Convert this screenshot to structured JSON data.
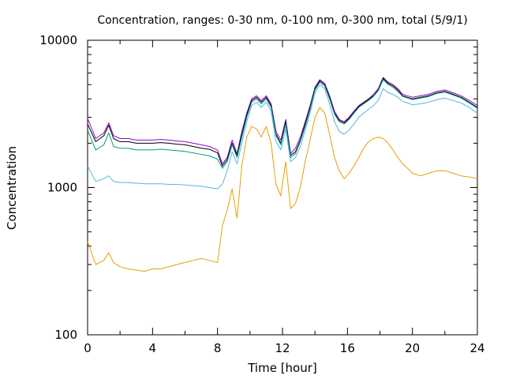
{
  "chart_data": {
    "type": "line",
    "title": "Concentration, ranges: 0-30 nm, 0-100 nm, 0-300 nm, total (5/9/1)",
    "xlabel": "Time [hour]",
    "ylabel": "Concentration",
    "xlim": [
      0,
      24
    ],
    "ylim": [
      100,
      10000
    ],
    "yscale": "log",
    "grid": false,
    "legend": "none",
    "xticks": [
      "0",
      "4",
      "8",
      "12",
      "16",
      "20",
      "24"
    ],
    "yticks": [
      "100",
      "1000",
      "10000"
    ],
    "x": [
      0,
      0.5,
      1,
      1.3,
      1.6,
      2,
      2.5,
      3,
      3.5,
      4,
      4.5,
      5,
      5.5,
      6,
      6.5,
      7,
      7.5,
      8,
      8.3,
      8.6,
      8.9,
      9.2,
      9.5,
      9.8,
      10.1,
      10.4,
      10.7,
      11,
      11.3,
      11.6,
      11.9,
      12.2,
      12.5,
      12.8,
      13.1,
      13.4,
      13.7,
      14,
      14.3,
      14.6,
      14.9,
      15.2,
      15.5,
      15.8,
      16.1,
      16.4,
      16.7,
      17,
      17.3,
      17.6,
      17.9,
      18.2,
      18.5,
      18.8,
      19.1,
      19.4,
      19.7,
      20,
      20.5,
      21,
      21.5,
      22,
      22.5,
      23,
      23.5,
      24
    ],
    "series": [
      {
        "color": "#9400d3",
        "values": [
          2950,
          2150,
          2350,
          2750,
          2250,
          2150,
          2150,
          2100,
          2100,
          2100,
          2120,
          2100,
          2070,
          2050,
          2000,
          1950,
          1900,
          1800,
          1450,
          1600,
          2100,
          1700,
          2400,
          3200,
          4000,
          4200,
          3900,
          4200,
          3700,
          2400,
          2100,
          2900,
          1700,
          1850,
          2200,
          2800,
          3600,
          4800,
          5400,
          5100,
          4200,
          3300,
          2900,
          2800,
          3000,
          3300,
          3600,
          3800,
          4000,
          4300,
          4700,
          5600,
          5200,
          5000,
          4700,
          4300,
          4200,
          4100,
          4200,
          4300,
          4500,
          4600,
          4400,
          4200,
          3900,
          3600
        ]
      },
      {
        "color": "#000000",
        "values": [
          2700,
          2050,
          2250,
          2650,
          2150,
          2050,
          2050,
          2000,
          2000,
          2000,
          2020,
          2000,
          1970,
          1950,
          1900,
          1850,
          1820,
          1720,
          1400,
          1550,
          2000,
          1650,
          2300,
          3100,
          3900,
          4100,
          3800,
          4100,
          3600,
          2300,
          2000,
          2800,
          1650,
          1750,
          2100,
          2700,
          3500,
          4700,
          5300,
          5000,
          4100,
          3200,
          2850,
          2750,
          2950,
          3250,
          3550,
          3750,
          3950,
          4200,
          4600,
          5500,
          5100,
          4900,
          4600,
          4200,
          4100,
          4000,
          4100,
          4200,
          4400,
          4500,
          4300,
          4100,
          3800,
          3500
        ]
      },
      {
        "color": "#009e73",
        "values": [
          2450,
          1800,
          1950,
          2350,
          1900,
          1850,
          1850,
          1800,
          1800,
          1800,
          1820,
          1800,
          1780,
          1760,
          1720,
          1680,
          1640,
          1560,
          1350,
          1500,
          1950,
          1600,
          2200,
          3000,
          3800,
          4000,
          3700,
          4000,
          3500,
          2250,
          1950,
          2700,
          1600,
          1700,
          2050,
          2600,
          3400,
          4600,
          5200,
          4900,
          4000,
          3150,
          2800,
          2700,
          2900,
          3200,
          3500,
          3700,
          3900,
          4150,
          4550,
          5400,
          5000,
          4800,
          4500,
          4150,
          4050,
          3950,
          4050,
          4150,
          4350,
          4450,
          4250,
          4050,
          3750,
          3450
        ]
      },
      {
        "color": "#56b4e9",
        "values": [
          1400,
          1100,
          1150,
          1200,
          1100,
          1080,
          1080,
          1070,
          1060,
          1060,
          1060,
          1050,
          1050,
          1040,
          1030,
          1020,
          1000,
          980,
          1050,
          1300,
          1750,
          1450,
          2000,
          2800,
          3600,
          3800,
          3500,
          3800,
          3300,
          2050,
          1800,
          2500,
          1500,
          1600,
          1900,
          2450,
          3200,
          4400,
          5000,
          4700,
          3700,
          2800,
          2400,
          2300,
          2450,
          2700,
          3000,
          3200,
          3400,
          3600,
          3900,
          4700,
          4400,
          4300,
          4100,
          3850,
          3750,
          3650,
          3700,
          3800,
          3950,
          4050,
          3900,
          3750,
          3500,
          3200
        ]
      },
      {
        "color": "#e69f00",
        "values": [
          430,
          300,
          320,
          360,
          310,
          290,
          280,
          275,
          270,
          280,
          280,
          290,
          300,
          310,
          320,
          330,
          320,
          310,
          550,
          700,
          980,
          620,
          1400,
          2200,
          2600,
          2500,
          2200,
          2600,
          2000,
          1050,
          880,
          1500,
          720,
          780,
          1000,
          1500,
          2100,
          3000,
          3500,
          3200,
          2300,
          1600,
          1300,
          1150,
          1250,
          1400,
          1600,
          1850,
          2050,
          2150,
          2200,
          2150,
          2000,
          1800,
          1600,
          1450,
          1350,
          1250,
          1200,
          1250,
          1300,
          1300,
          1250,
          1200,
          1180,
          1150
        ]
      }
    ]
  }
}
